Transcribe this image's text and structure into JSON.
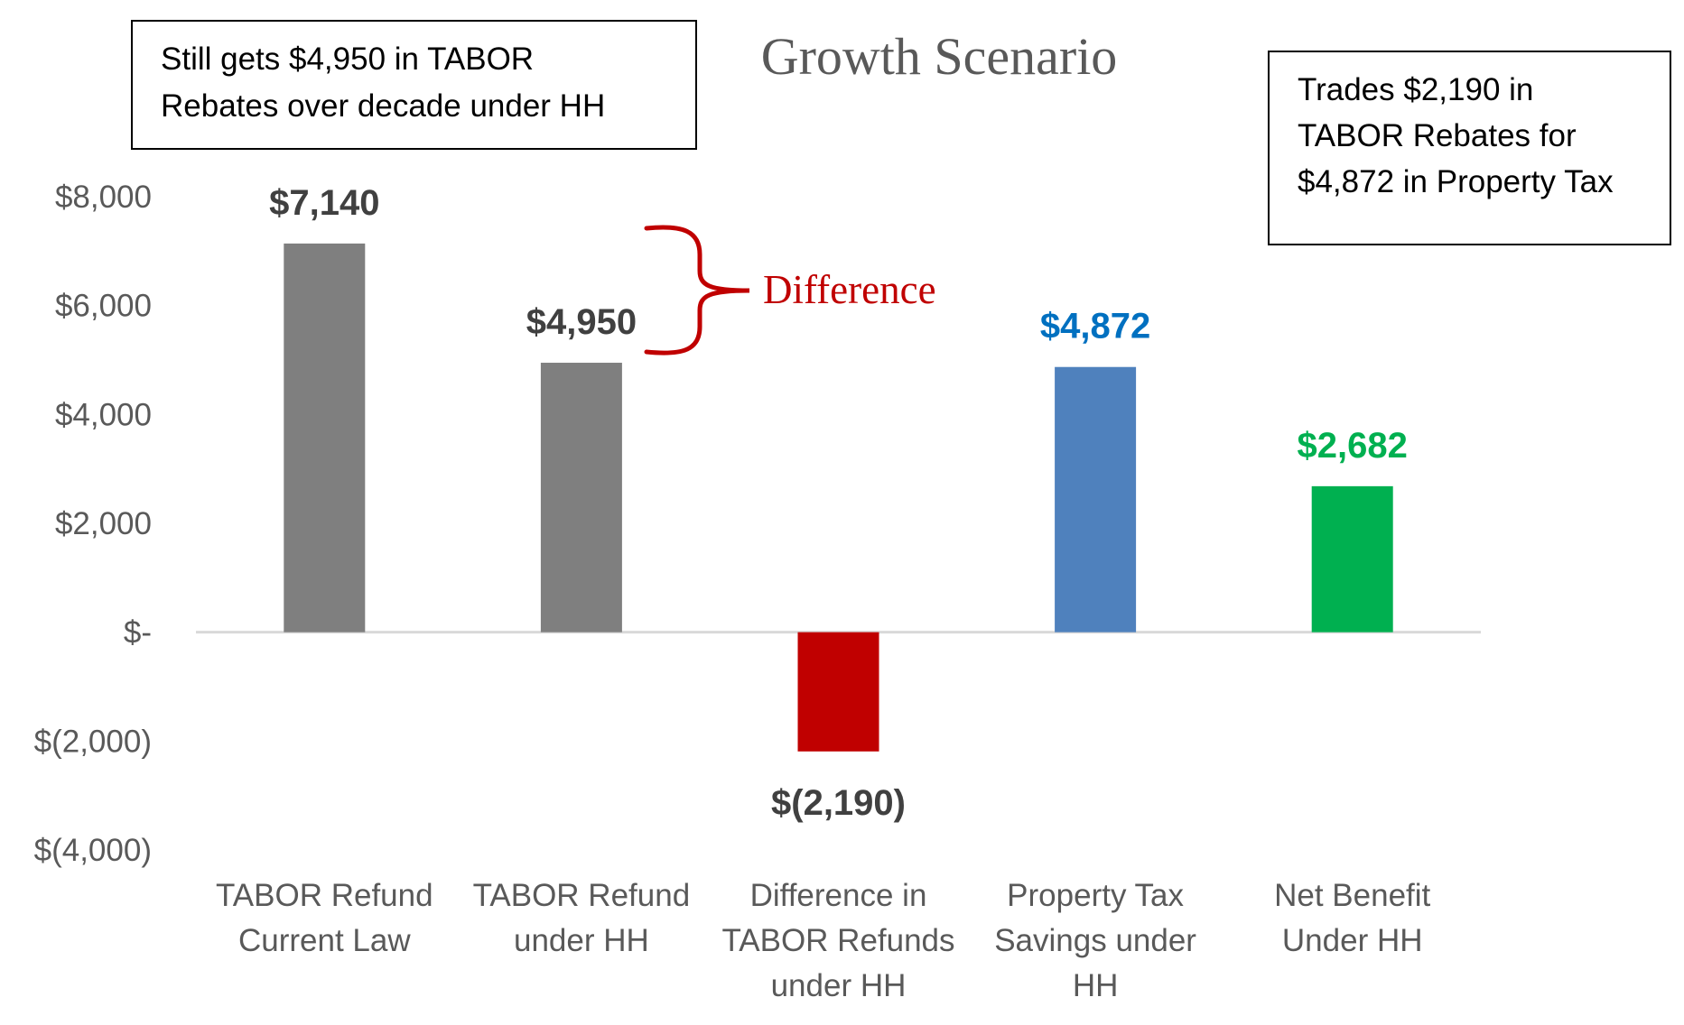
{
  "chart_data": {
    "type": "bar",
    "title": "Growth Scenario",
    "categories": [
      [
        "TABOR Refund",
        "Current Law"
      ],
      [
        "TABOR Refund",
        "under HH"
      ],
      [
        "Difference in",
        "TABOR Refunds",
        "under HH"
      ],
      [
        "Property Tax",
        "Savings under",
        "HH"
      ],
      [
        "Net Benefit",
        "Under HH"
      ]
    ],
    "values": [
      7140,
      4950,
      -2190,
      4872,
      2682
    ],
    "value_labels": [
      "$7,140",
      "$4,950",
      "$(2,190)",
      "$4,872",
      "$2,682"
    ],
    "bar_colors": [
      "#7f7f7f",
      "#7f7f7f",
      "#c00000",
      "#4f81bd",
      "#00b050"
    ],
    "label_colors": [
      "#404040",
      "#404040",
      "#404040",
      "#0070c0",
      "#00b050"
    ],
    "ylim": [
      -4000,
      8000
    ],
    "yticks": [
      8000,
      6000,
      4000,
      2000,
      0,
      -2000,
      -4000
    ],
    "ytick_labels": [
      "$8,000",
      "$6,000",
      "$4,000",
      "$2,000",
      "$-",
      "$(2,000)",
      "$(4,000)"
    ],
    "grid": false,
    "annotations": {
      "left_box": [
        "Still gets $4,950 in TABOR",
        "Rebates over decade under HH"
      ],
      "right_box": [
        "Trades $2,190 in",
        "TABOR Rebates for",
        "$4,872 in Property Tax"
      ],
      "bracket_label": "Difference"
    }
  },
  "colors": {
    "axis_text": "#595959",
    "axis_line": "#d9d9d9",
    "title": "#595959",
    "bracket": "#c00000"
  }
}
